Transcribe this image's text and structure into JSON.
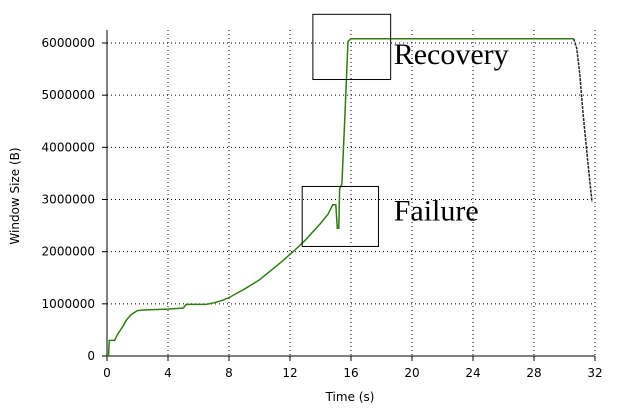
{
  "chart_data": {
    "type": "line",
    "xlabel": "Time (s)",
    "ylabel": "Window Size (B)",
    "xlim": [
      0,
      32
    ],
    "ylim": [
      0,
      6000000
    ],
    "xticks": [
      0,
      4,
      8,
      12,
      16,
      20,
      24,
      28,
      32
    ],
    "yticks": [
      0,
      1000000,
      2000000,
      3000000,
      4000000,
      5000000,
      6000000
    ],
    "grid": true,
    "series": [
      {
        "color": "#2e7d12",
        "points": [
          [
            0.0,
            0
          ],
          [
            0.1,
            0
          ],
          [
            0.15,
            300000
          ],
          [
            0.5,
            300000
          ],
          [
            0.7,
            420000
          ],
          [
            1.0,
            550000
          ],
          [
            1.3,
            700000
          ],
          [
            1.6,
            800000
          ],
          [
            2.0,
            870000
          ],
          [
            2.3,
            880000
          ],
          [
            3.0,
            890000
          ],
          [
            4.0,
            900000
          ],
          [
            5.0,
            920000
          ],
          [
            5.2,
            990000
          ],
          [
            6.5,
            990000
          ],
          [
            7.0,
            1020000
          ],
          [
            7.5,
            1060000
          ],
          [
            8.0,
            1120000
          ],
          [
            8.5,
            1200000
          ],
          [
            9.0,
            1280000
          ],
          [
            9.5,
            1370000
          ],
          [
            10.0,
            1460000
          ],
          [
            10.5,
            1580000
          ],
          [
            11.0,
            1700000
          ],
          [
            11.5,
            1820000
          ],
          [
            12.0,
            1950000
          ],
          [
            12.5,
            2080000
          ],
          [
            13.0,
            2220000
          ],
          [
            13.5,
            2380000
          ],
          [
            14.0,
            2540000
          ],
          [
            14.5,
            2720000
          ],
          [
            14.8,
            2900000
          ],
          [
            15.0,
            2900000
          ],
          [
            15.1,
            2450000
          ],
          [
            15.2,
            2450000
          ],
          [
            15.25,
            3200000
          ],
          [
            15.4,
            3300000
          ],
          [
            15.6,
            4600000
          ],
          [
            15.8,
            6030000
          ],
          [
            16.0,
            6080000
          ],
          [
            20.0,
            6080000
          ],
          [
            24.0,
            6080000
          ],
          [
            28.0,
            6080000
          ],
          [
            30.6,
            6080000
          ]
        ]
      },
      {
        "color": "#222222",
        "points": [
          [
            30.6,
            6080000
          ],
          [
            30.8,
            5900000
          ],
          [
            31.0,
            5400000
          ],
          [
            31.2,
            4700000
          ],
          [
            31.5,
            3800000
          ],
          [
            31.8,
            2950000
          ]
        ]
      }
    ],
    "annotations": [
      {
        "label": "Failure",
        "x_range": [
          12.8,
          17.8
        ],
        "y_range": [
          2100000,
          3250000
        ],
        "label_at": [
          18.8,
          2600000
        ]
      },
      {
        "label": "Recovery",
        "x_range": [
          13.5,
          18.6
        ],
        "y_range": [
          5300000,
          6550000
        ],
        "label_at": [
          18.8,
          5600000
        ]
      }
    ]
  }
}
